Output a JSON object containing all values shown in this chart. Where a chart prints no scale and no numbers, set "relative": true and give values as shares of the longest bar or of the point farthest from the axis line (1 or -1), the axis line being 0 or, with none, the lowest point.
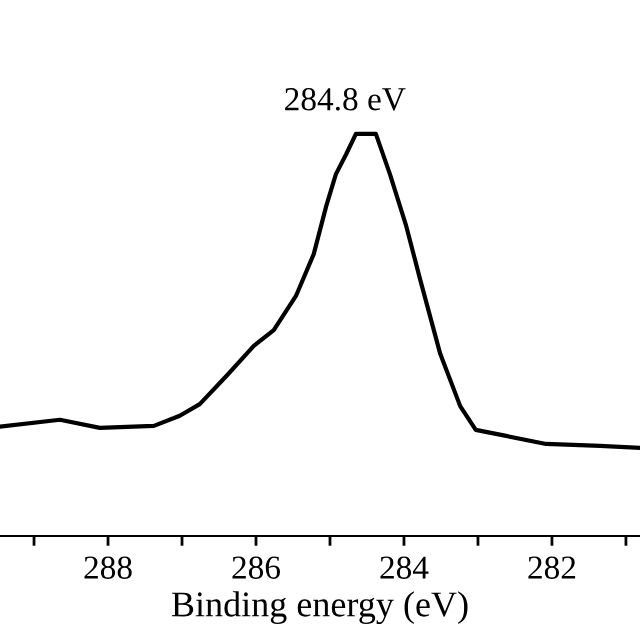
{
  "chart_data": {
    "type": "line",
    "relative": true,
    "xlabel": "Binding energy (eV)",
    "xlim": [
      289.46,
      280.81
    ],
    "xticks": [
      {
        "value": 289,
        "label": null
      },
      288,
      {
        "value": 287,
        "label": null
      },
      286,
      {
        "value": 285,
        "label": null
      },
      284,
      {
        "value": 283,
        "label": null
      },
      282,
      {
        "value": 281,
        "label": null
      }
    ],
    "annotations": [
      {
        "text": "284.8 eV",
        "x": 284.8,
        "y": 1
      }
    ],
    "grid": false,
    "legend": false,
    "marker": "none",
    "line_style": "solid",
    "series": [
      {
        "color": "#000000",
        "x": [
          289.46,
          288.65,
          288.11,
          287.38,
          287.03,
          286.76,
          286.4,
          286.03,
          285.76,
          285.46,
          285.22,
          285.05,
          284.92,
          284.78,
          284.65,
          284.38,
          284.19,
          283.97,
          283.78,
          283.51,
          283.24,
          283.03,
          282.62,
          282.08,
          281.35,
          280.81
        ],
        "values": [
          0.272,
          0.289,
          0.269,
          0.274,
          0.299,
          0.328,
          0.398,
          0.473,
          0.512,
          0.597,
          0.701,
          0.821,
          0.9,
          0.95,
          1.0,
          1.0,
          0.9,
          0.771,
          0.637,
          0.453,
          0.323,
          0.264,
          0.249,
          0.229,
          0.224,
          0.219
        ]
      }
    ]
  }
}
